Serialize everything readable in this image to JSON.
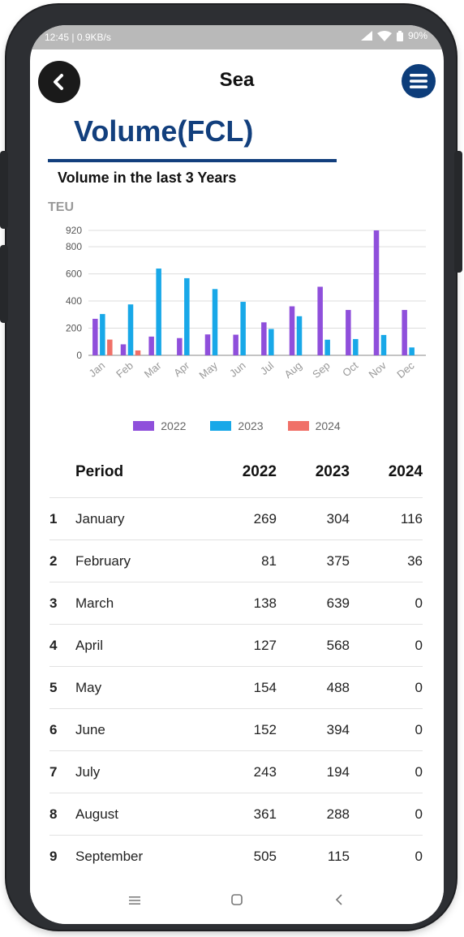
{
  "status_bar": {
    "time_speed": "12:45 | 0.9KB/s",
    "battery": "90%"
  },
  "header": {
    "title": "Sea"
  },
  "page": {
    "heading": "Volume(FCL)",
    "chart_title": "Volume in the last 3 Years"
  },
  "colors": {
    "c2022": "#8f4fdb",
    "c2023": "#18a8e8",
    "c2024": "#f07068",
    "accent": "#123f7d"
  },
  "icons": {
    "back": "chevron-left-icon",
    "menu": "hamburger-icon",
    "nav_recent": "recent-apps-icon",
    "nav_home": "home-icon",
    "nav_back": "back-triangle-icon"
  },
  "chart_data": {
    "type": "bar",
    "ylabel": "TEU",
    "categories": [
      "Jan",
      "Feb",
      "Mar",
      "Apr",
      "May",
      "Jun",
      "Jul",
      "Aug",
      "Sep",
      "Oct",
      "Nov",
      "Dec"
    ],
    "yticks": [
      0,
      200,
      400,
      600,
      800,
      920
    ],
    "ylim": [
      0,
      920
    ],
    "grid": true,
    "legend_position": "bottom-center",
    "series": [
      {
        "name": "2022",
        "values": [
          269,
          81,
          138,
          127,
          154,
          152,
          243,
          361,
          505,
          334,
          920,
          334
        ]
      },
      {
        "name": "2023",
        "values": [
          304,
          375,
          639,
          568,
          488,
          394,
          194,
          288,
          115,
          120,
          150,
          58
        ]
      },
      {
        "name": "2024",
        "values": [
          116,
          36,
          0,
          0,
          0,
          0,
          0,
          0,
          0,
          0,
          0,
          0
        ]
      }
    ]
  },
  "table": {
    "headers": {
      "period": "Period",
      "y2022": "2022",
      "y2023": "2023",
      "y2024": "2024"
    },
    "rows": [
      {
        "idx": "1",
        "period": "January",
        "y2022": "269",
        "y2023": "304",
        "y2024": "116"
      },
      {
        "idx": "2",
        "period": "February",
        "y2022": "81",
        "y2023": "375",
        "y2024": "36"
      },
      {
        "idx": "3",
        "period": "March",
        "y2022": "138",
        "y2023": "639",
        "y2024": "0"
      },
      {
        "idx": "4",
        "period": "April",
        "y2022": "127",
        "y2023": "568",
        "y2024": "0"
      },
      {
        "idx": "5",
        "period": "May",
        "y2022": "154",
        "y2023": "488",
        "y2024": "0"
      },
      {
        "idx": "6",
        "period": "June",
        "y2022": "152",
        "y2023": "394",
        "y2024": "0"
      },
      {
        "idx": "7",
        "period": "July",
        "y2022": "243",
        "y2023": "194",
        "y2024": "0"
      },
      {
        "idx": "8",
        "period": "August",
        "y2022": "361",
        "y2023": "288",
        "y2024": "0"
      },
      {
        "idx": "9",
        "period": "September",
        "y2022": "505",
        "y2023": "115",
        "y2024": "0"
      }
    ]
  }
}
